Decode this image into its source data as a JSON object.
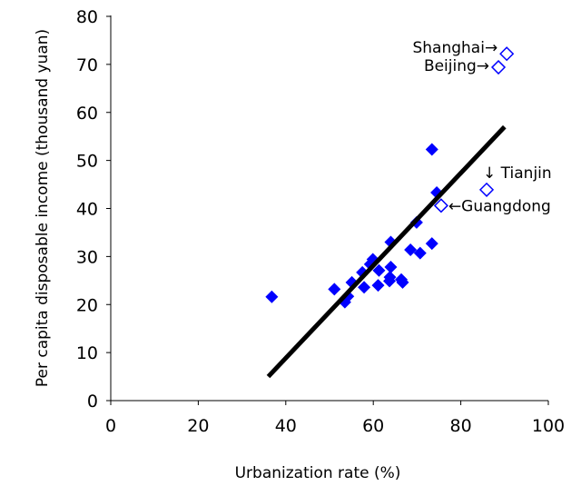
{
  "chart_data": {
    "type": "scatter",
    "xlabel": "Urbanization rate (%)",
    "ylabel": "Per capita disposable income (thousand yuan)",
    "xlim": [
      0,
      100
    ],
    "ylim": [
      0,
      80
    ],
    "xticks": [
      0,
      20,
      40,
      60,
      80,
      100
    ],
    "yticks": [
      0,
      10,
      20,
      30,
      40,
      50,
      60,
      70,
      80
    ],
    "grid": false,
    "marker_color": "#0000ff",
    "points": [
      [
        73.4,
        52.3
      ],
      [
        74.5,
        43.3
      ],
      [
        69.9,
        37.1
      ],
      [
        64.0,
        33.0
      ],
      [
        73.4,
        32.7
      ],
      [
        68.5,
        31.4
      ],
      [
        70.7,
        30.7
      ],
      [
        59.9,
        29.4
      ],
      [
        59.3,
        28.4
      ],
      [
        61.3,
        27.1
      ],
      [
        64.0,
        27.8
      ],
      [
        57.5,
        26.7
      ],
      [
        63.8,
        25.7
      ],
      [
        63.7,
        24.9
      ],
      [
        66.4,
        25.2
      ],
      [
        66.7,
        24.6
      ],
      [
        55.1,
        24.6
      ],
      [
        57.9,
        23.6
      ],
      [
        61.1,
        24.0
      ],
      [
        51.1,
        23.2
      ],
      [
        54.2,
        21.7
      ],
      [
        53.5,
        20.5
      ],
      [
        36.8,
        21.6
      ]
    ],
    "highlighted": [
      {
        "label": "Shanghai→",
        "x": 90.5,
        "y": 72.2
      },
      {
        "label": "Beijing→",
        "x": 88.6,
        "y": 69.4
      },
      {
        "label": "↓ Tianjin",
        "x": 85.9,
        "y": 43.9
      },
      {
        "label": "←Guangdong",
        "x": 75.5,
        "y": 40.6
      }
    ],
    "trendline": {
      "x": [
        36,
        90
      ],
      "y": [
        5,
        57
      ]
    }
  }
}
